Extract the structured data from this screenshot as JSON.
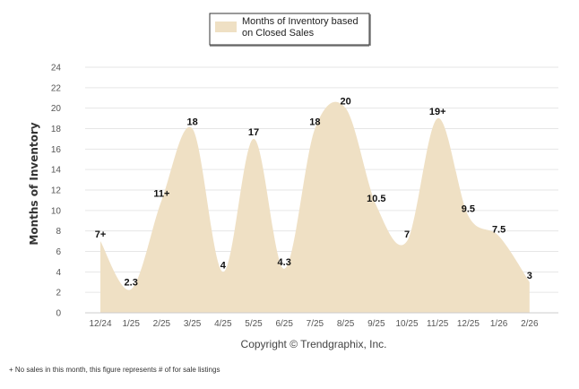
{
  "chart_data": {
    "type": "area",
    "ylabel": "Months of Inventory",
    "ylim": [
      0,
      24
    ],
    "yticks": [
      0,
      2,
      4,
      6,
      8,
      10,
      12,
      14,
      16,
      18,
      20,
      22,
      24
    ],
    "categories": [
      "12/24",
      "1/25",
      "2/25",
      "3/25",
      "4/25",
      "5/25",
      "6/25",
      "7/25",
      "8/25",
      "9/25",
      "10/25",
      "11/25",
      "12/25",
      "1/26",
      "2/26"
    ],
    "series": [
      {
        "name": "Months of Inventory based on Closed Sales",
        "color": "#efe0c4",
        "values": [
          7,
          2.3,
          11,
          18,
          4,
          17,
          4.3,
          18,
          20,
          10.5,
          7,
          19,
          9.5,
          7.5,
          3
        ],
        "labels": [
          "7+",
          "2.3",
          "11+",
          "18",
          "4",
          "17",
          "4.3",
          "18",
          "20",
          "10.5",
          "7",
          "19+",
          "9.5",
          "7.5",
          "3"
        ]
      }
    ],
    "legend": {
      "line1": "Months of Inventory based",
      "line2": "on Closed Sales",
      "position": "top-center"
    },
    "grid": true
  },
  "copyright": "Copyright © Trendgraphix, Inc.",
  "footnote": "+ No sales in this month, this figure represents # of for sale listings"
}
